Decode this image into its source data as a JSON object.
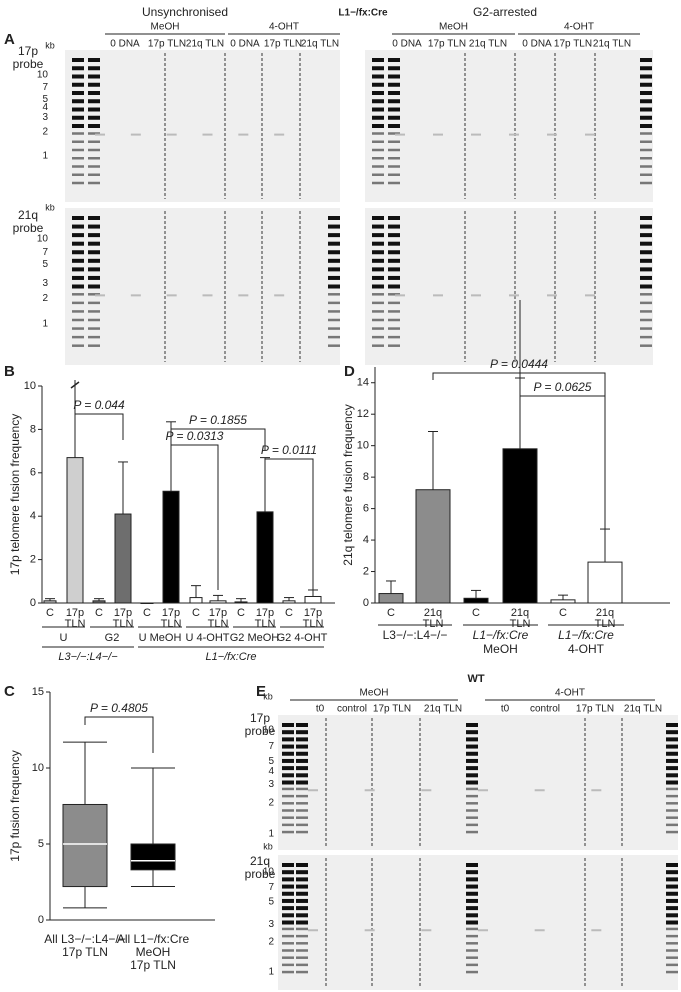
{
  "figure": {
    "panel_labels": [
      "A",
      "B",
      "C",
      "D",
      "E"
    ],
    "gel_a": {
      "title": "L1−/fx:Cre",
      "left_title": "Unsynchronised",
      "right_title": "G2-arrested",
      "treatments": [
        "MeOH",
        "4-OHT"
      ],
      "lanes": [
        "0 DNA",
        "17p TLN",
        "21q TLN"
      ],
      "probes": [
        [
          "17p",
          "probe"
        ],
        [
          "21q",
          "probe"
        ]
      ],
      "kb": "kb",
      "markers_17p": [
        10,
        7,
        5,
        4,
        3,
        2,
        1
      ],
      "markers_21q": [
        10,
        7,
        5,
        3,
        2,
        1
      ]
    },
    "gel_e": {
      "title": "WT",
      "treatments": [
        "MeOH",
        "4-OHT"
      ],
      "lanes": [
        "t0",
        "control",
        "17p TLN",
        "21q TLN"
      ],
      "probes": [
        [
          "17p",
          "probe"
        ],
        [
          "21q",
          "probe"
        ]
      ],
      "kb": "kb",
      "markers_17p": [
        10,
        7,
        5,
        4,
        3,
        2,
        1
      ],
      "markers_21q": [
        10,
        7,
        5,
        3,
        2,
        1
      ]
    }
  },
  "chart_data": [
    {
      "type": "bar",
      "y_label": "17p telomere fusion frequency",
      "categories": [
        "C",
        "17p TLN",
        "C",
        "17p TLN",
        "C",
        "17p TLN",
        "C",
        "17p TLN",
        "C",
        "17p TLN",
        "C",
        "17p TLN"
      ],
      "values": [
        0.1,
        6.7,
        0.1,
        4.1,
        0,
        5.15,
        0.25,
        0.1,
        0.05,
        4.2,
        0.1,
        0.3
      ],
      "errors": [
        0.1,
        4.3,
        0.1,
        2.4,
        0,
        3.2,
        0.55,
        0.25,
        0.15,
        2.5,
        0.15,
        0.3
      ],
      "colors": [
        "#cfcfcf",
        "#cfcfcf",
        "#6e6e6e",
        "#6e6e6e",
        "#000000",
        "#000000",
        "#ffffff",
        "#ffffff",
        "#000000",
        "#000000",
        "#ffffff",
        "#ffffff"
      ],
      "ylim": [
        0,
        10
      ],
      "yticks": [
        0,
        2,
        4,
        6,
        8,
        10
      ],
      "groups": [
        "U",
        "G2",
        "U MeOH",
        "U 4-OHT",
        "G2 MeOH",
        "G2 4-OHT"
      ],
      "supergroups": [
        "L3−/−:L4−/−",
        "L1−/fx:Cre"
      ],
      "annotations": [
        "P = 0.044",
        "P = 0.0313",
        "P = 0.1855",
        "P = 0.0111"
      ]
    },
    {
      "type": "box",
      "y_label": "17p fusion frequency",
      "categories": [
        [
          "All L3−/−:L4−/−",
          "17p TLN"
        ],
        [
          "All L1−/fx:Cre",
          "MeOH",
          "17p TLN"
        ]
      ],
      "min": [
        0.8,
        2.2
      ],
      "q1": [
        2.2,
        3.3
      ],
      "median": [
        5.0,
        3.9
      ],
      "q3": [
        7.6,
        5.0
      ],
      "max": [
        11.7,
        10.0
      ],
      "colors": [
        "#8c8c8c",
        "#000000"
      ],
      "ylim": [
        0,
        15
      ],
      "yticks": [
        0,
        5,
        10,
        15
      ],
      "annotations": [
        "P = 0.4805"
      ]
    },
    {
      "type": "bar",
      "y_label": "21q telomere fusion frequency",
      "categories": [
        "C",
        "21q TLN",
        "C",
        "21q TLN",
        "C",
        "21q TLN"
      ],
      "values": [
        0.6,
        7.2,
        0.3,
        9.8,
        0.2,
        2.6
      ],
      "errors": [
        0.8,
        3.7,
        0.5,
        4.5,
        0.3,
        2.1
      ],
      "colors": [
        "#8c8c8c",
        "#8c8c8c",
        "#000000",
        "#000000",
        "#ffffff",
        "#ffffff"
      ],
      "ylim": [
        0,
        15
      ],
      "yticks": [
        0,
        2,
        4,
        6,
        8,
        10,
        12,
        14
      ],
      "groups": [
        [
          "L3−/−:L4−/−"
        ],
        [
          "L1−/fx:Cre",
          "MeOH"
        ],
        [
          "L1−/fx:Cre",
          "4-OHT"
        ]
      ],
      "annotations": [
        "P = 0.0444",
        "P = 0.0625"
      ]
    }
  ]
}
